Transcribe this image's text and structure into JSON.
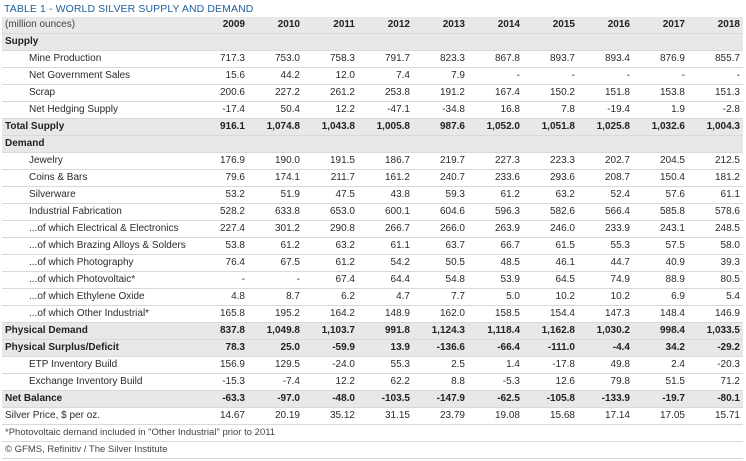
{
  "title": "TABLE 1 - WORLD SILVER SUPPLY AND DEMAND",
  "unit_label": "(million ounces)",
  "years": [
    "2009",
    "2010",
    "2011",
    "2012",
    "2013",
    "2014",
    "2015",
    "2016",
    "2017",
    "2018"
  ],
  "rows": [
    {
      "label": "Supply",
      "type": "section",
      "values": []
    },
    {
      "label": "Mine Production",
      "type": "item",
      "values": [
        "717.3",
        "753.0",
        "758.3",
        "791.7",
        "823.3",
        "867.8",
        "893.7",
        "893.4",
        "876.9",
        "855.7"
      ]
    },
    {
      "label": "Net Government Sales",
      "type": "item",
      "values": [
        "15.6",
        "44.2",
        "12.0",
        "7.4",
        "7.9",
        "-",
        "-",
        "-",
        "-",
        "-"
      ]
    },
    {
      "label": "Scrap",
      "type": "item",
      "values": [
        "200.6",
        "227.2",
        "261.2",
        "253.8",
        "191.2",
        "167.4",
        "150.2",
        "151.8",
        "153.8",
        "151.3"
      ]
    },
    {
      "label": "Net Hedging Supply",
      "type": "item",
      "values": [
        "-17.4",
        "50.4",
        "12.2",
        "-47.1",
        "-34.8",
        "16.8",
        "7.8",
        "-19.4",
        "1.9",
        "-2.8"
      ]
    },
    {
      "label": "Total Supply",
      "type": "total",
      "values": [
        "916.1",
        "1,074.8",
        "1,043.8",
        "1,005.8",
        "987.6",
        "1,052.0",
        "1,051.8",
        "1,025.8",
        "1,032.6",
        "1,004.3"
      ]
    },
    {
      "label": "Demand",
      "type": "section",
      "values": []
    },
    {
      "label": "Jewelry",
      "type": "item",
      "values": [
        "176.9",
        "190.0",
        "191.5",
        "186.7",
        "219.7",
        "227.3",
        "223.3",
        "202.7",
        "204.5",
        "212.5"
      ]
    },
    {
      "label": "Coins & Bars",
      "type": "item",
      "values": [
        "79.6",
        "174.1",
        "211.7",
        "161.2",
        "240.7",
        "233.6",
        "293.6",
        "208.7",
        "150.4",
        "181.2"
      ]
    },
    {
      "label": "Silverware",
      "type": "item",
      "values": [
        "53.2",
        "51.9",
        "47.5",
        "43.8",
        "59.3",
        "61.2",
        "63.2",
        "52.4",
        "57.6",
        "61.1"
      ]
    },
    {
      "label": "Industrial Fabrication",
      "type": "item",
      "values": [
        "528.2",
        "633.8",
        "653.0",
        "600.1",
        "604.6",
        "596.3",
        "582.6",
        "566.4",
        "585.8",
        "578.6"
      ]
    },
    {
      "label": "...of which Electrical & Electronics",
      "type": "item",
      "values": [
        "227.4",
        "301.2",
        "290.8",
        "266.7",
        "266.0",
        "263.9",
        "246.0",
        "233.9",
        "243.1",
        "248.5"
      ]
    },
    {
      "label": "...of which Brazing Alloys & Solders",
      "type": "item",
      "values": [
        "53.8",
        "61.2",
        "63.2",
        "61.1",
        "63.7",
        "66.7",
        "61.5",
        "55.3",
        "57.5",
        "58.0"
      ]
    },
    {
      "label": "...of which Photography",
      "type": "item",
      "values": [
        "76.4",
        "67.5",
        "61.2",
        "54.2",
        "50.5",
        "48.5",
        "46.1",
        "44.7",
        "40.9",
        "39.3"
      ]
    },
    {
      "label": "...of which Photovoltaic*",
      "type": "item",
      "values": [
        "-",
        "-",
        "67.4",
        "64.4",
        "54.8",
        "53.9",
        "64.5",
        "74.9",
        "88.9",
        "80.5"
      ]
    },
    {
      "label": "...of which Ethylene Oxide",
      "type": "item",
      "values": [
        "4.8",
        "8.7",
        "6.2",
        "4.7",
        "7.7",
        "5.0",
        "10.2",
        "10.2",
        "6.9",
        "5.4"
      ]
    },
    {
      "label": "...of which Other Industrial*",
      "type": "item",
      "values": [
        "165.8",
        "195.2",
        "164.2",
        "148.9",
        "162.0",
        "158.5",
        "154.4",
        "147.3",
        "148.4",
        "146.9"
      ]
    },
    {
      "label": "Physical Demand",
      "type": "total",
      "values": [
        "837.8",
        "1,049.8",
        "1,103.7",
        "991.8",
        "1,124.3",
        "1,118.4",
        "1,162.8",
        "1,030.2",
        "998.4",
        "1,033.5"
      ]
    },
    {
      "label": "Physical Surplus/Deficit",
      "type": "total",
      "values": [
        "78.3",
        "25.0",
        "-59.9",
        "13.9",
        "-136.6",
        "-66.4",
        "-111.0",
        "-4.4",
        "34.2",
        "-29.2"
      ]
    },
    {
      "label": "ETP Inventory Build",
      "type": "item",
      "values": [
        "156.9",
        "129.5",
        "-24.0",
        "55.3",
        "2.5",
        "1.4",
        "-17.8",
        "49.8",
        "2.4",
        "-20.3"
      ]
    },
    {
      "label": "Exchange Inventory Build",
      "type": "item",
      "values": [
        "-15.3",
        "-7.4",
        "12.2",
        "62.2",
        "8.8",
        "-5.3",
        "12.6",
        "79.8",
        "51.5",
        "71.2"
      ]
    },
    {
      "label": "Net Balance",
      "type": "total",
      "values": [
        "-63.3",
        "-97.0",
        "-48.0",
        "-103.5",
        "-147.9",
        "-62.5",
        "-105.8",
        "-133.9",
        "-19.7",
        "-80.1"
      ]
    },
    {
      "label": "Silver Price, $ per oz.",
      "type": "plain",
      "values": [
        "14.67",
        "20.19",
        "35.12",
        "31.15",
        "23.79",
        "19.08",
        "15.68",
        "17.14",
        "17.05",
        "15.71"
      ]
    }
  ],
  "footnote": "*Photovoltaic demand included in \"Other Industrial\" prior to 2011",
  "source": "© GFMS, Refinitiv / The Silver Institute"
}
